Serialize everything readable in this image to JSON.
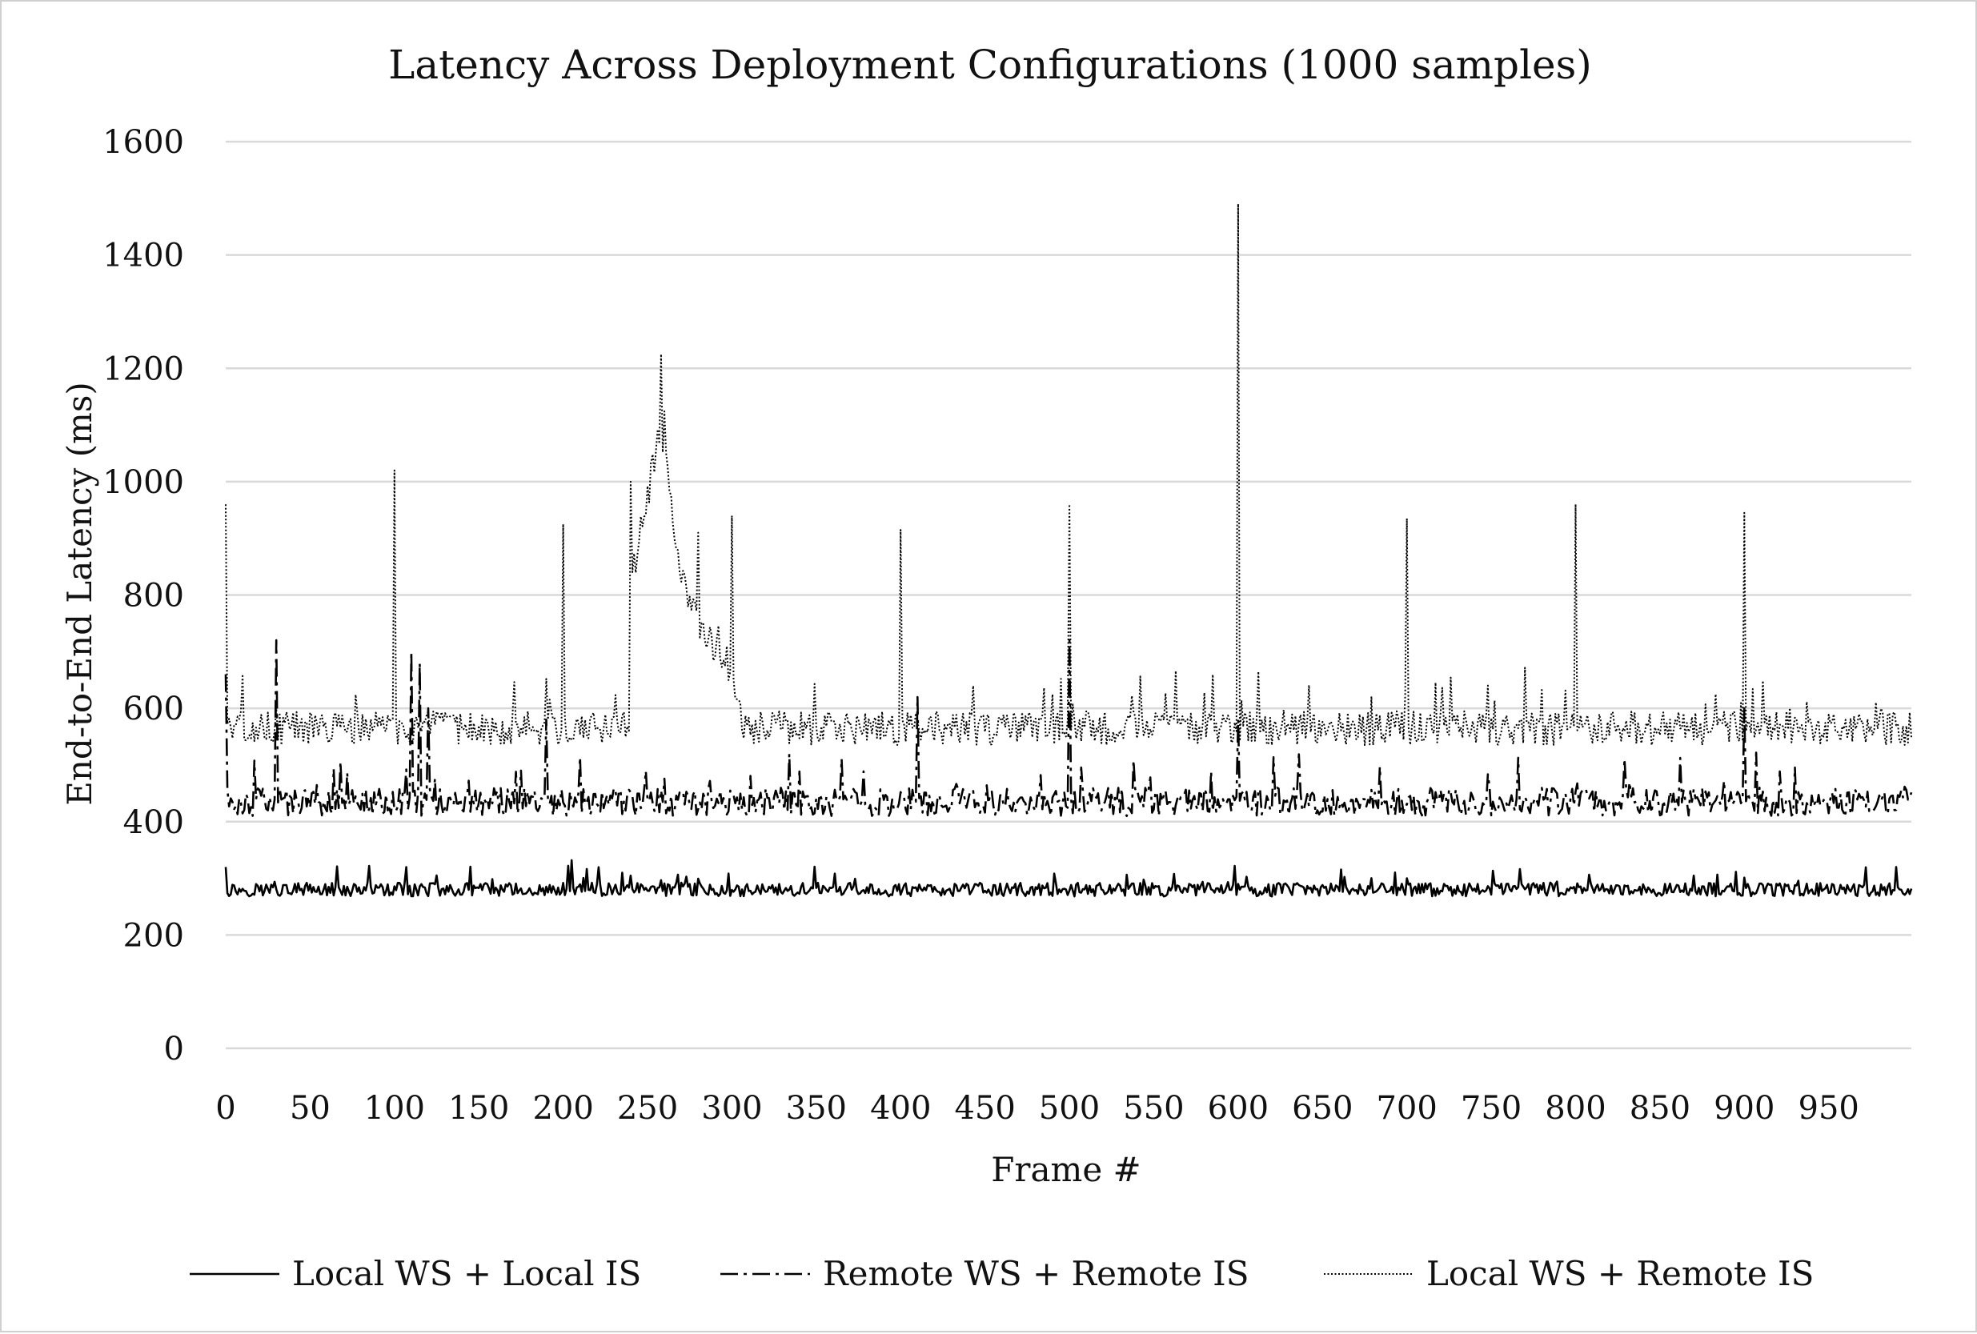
{
  "chart_data": {
    "type": "line",
    "title": "Latency Across Deployment Configurations (1000 samples)",
    "xlabel": "Frame #",
    "ylabel": "End-to-End Latency (ms)",
    "xlim": [
      0,
      999
    ],
    "ylim": [
      0,
      1600
    ],
    "x_ticks": [
      0,
      50,
      100,
      150,
      200,
      250,
      300,
      350,
      400,
      450,
      500,
      550,
      600,
      650,
      700,
      750,
      800,
      850,
      900,
      950
    ],
    "y_ticks": [
      0,
      200,
      400,
      600,
      800,
      1000,
      1200,
      1400,
      1600
    ],
    "grid": "horizontal",
    "legend_position": "bottom",
    "series": [
      {
        "name": "Local WS + Local IS",
        "style": "solid",
        "color": "#000000",
        "baseline_ms": 280,
        "noise_ms": 12,
        "notable_points": [
          [
            0,
            320
          ],
          [
            125,
            305
          ],
          [
            205,
            332
          ],
          [
            235,
            310
          ],
          [
            700,
            300
          ],
          [
            990,
            320
          ]
        ]
      },
      {
        "name": "Remote WS + Remote IS",
        "style": "dash-dot",
        "color": "#000000",
        "baseline_ms": 435,
        "noise_ms": 25,
        "notable_points": [
          [
            0,
            660
          ],
          [
            30,
            720
          ],
          [
            110,
            700
          ],
          [
            115,
            680
          ],
          [
            120,
            600
          ],
          [
            190,
            580
          ],
          [
            410,
            620
          ],
          [
            500,
            720
          ],
          [
            600,
            580
          ],
          [
            900,
            600
          ]
        ]
      },
      {
        "name": "Local WS + Remote IS",
        "style": "dotted",
        "color": "#000000",
        "baseline_ms": 565,
        "noise_ms": 30,
        "notable_points": [
          [
            0,
            960
          ],
          [
            100,
            1020
          ],
          [
            200,
            925
          ],
          [
            240,
            1000
          ],
          [
            258,
            1225
          ],
          [
            280,
            910
          ],
          [
            300,
            940
          ],
          [
            400,
            915
          ],
          [
            500,
            960
          ],
          [
            600,
            1490
          ],
          [
            700,
            935
          ],
          [
            800,
            960
          ],
          [
            900,
            945
          ]
        ],
        "elevated_segment": {
          "x": [
            240,
            300
          ],
          "levels_ms": [
            [
              240,
              820
            ],
            [
              258,
              1100
            ],
            [
              270,
              820
            ],
            [
              290,
              700
            ],
            [
              305,
              600
            ]
          ]
        }
      }
    ]
  }
}
